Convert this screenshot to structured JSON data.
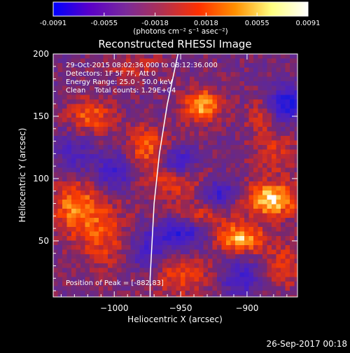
{
  "colorbar": {
    "ticks": [
      "-0.0091",
      "-0.0055",
      "-0.0018",
      "0.0018",
      "0.0055",
      "0.0091"
    ],
    "unit_label": "(photons cm⁻² s⁻¹ asec⁻²)",
    "range": [
      -0.0091,
      0.0091
    ],
    "colors": [
      "#0000ff",
      "#5a00c8",
      "#7a2a9a",
      "#b03050",
      "#ff3000",
      "#ff9000",
      "#ffff80",
      "#ffffff"
    ]
  },
  "chart_data": {
    "type": "heatmap",
    "title": "Reconstructed RHESSI Image",
    "xlabel": "Heliocentric X (arcsec)",
    "ylabel": "Heliocentric Y (arcsec)",
    "xlim": [
      -1046,
      -862
    ],
    "ylim": [
      5,
      200
    ],
    "x_ticks": [
      -1000,
      -950,
      -900
    ],
    "y_ticks": [
      50,
      100,
      150,
      200
    ],
    "annotations": [
      "29-Oct-2015 08:02:36.000 to 08:12:36.000",
      "Detectors: 1F 5F 7F, Att 0",
      "Energy Range: 25.0 - 50.0 keV",
      "Clean    Total counts: 1.29E+04"
    ],
    "peak_label": "Position of Peak = [-882,83]",
    "peak": [
      -882,
      83
    ],
    "limb_curve": [
      [
        -952,
        200
      ],
      [
        -956,
        180
      ],
      [
        -960,
        160
      ],
      [
        -963,
        140
      ],
      [
        -966,
        120
      ],
      [
        -968,
        100
      ],
      [
        -970,
        80
      ],
      [
        -971,
        60
      ],
      [
        -972,
        40
      ],
      [
        -973,
        20
      ],
      [
        -973,
        5
      ]
    ],
    "sources": [
      {
        "x": -882,
        "y": 83,
        "amp": 1.0,
        "sx": 14,
        "sy": 9
      },
      {
        "x": -905,
        "y": 52,
        "amp": 0.85,
        "sx": 13,
        "sy": 8
      },
      {
        "x": -934,
        "y": 158,
        "amp": 0.8,
        "sx": 10,
        "sy": 10
      },
      {
        "x": -1030,
        "y": 78,
        "amp": 0.65,
        "sx": 12,
        "sy": 14
      },
      {
        "x": -1018,
        "y": 150,
        "amp": 0.55,
        "sx": 12,
        "sy": 10
      },
      {
        "x": -1010,
        "y": 55,
        "amp": 0.45,
        "sx": 14,
        "sy": 20
      },
      {
        "x": -975,
        "y": 125,
        "amp": 0.55,
        "sx": 10,
        "sy": 12
      },
      {
        "x": -955,
        "y": 100,
        "amp": 0.5,
        "sx": 16,
        "sy": 10
      },
      {
        "x": -940,
        "y": 70,
        "amp": 0.5,
        "sx": 18,
        "sy": 8
      },
      {
        "x": -950,
        "y": 22,
        "amp": 0.45,
        "sx": 18,
        "sy": 12
      },
      {
        "x": -878,
        "y": 120,
        "amp": 0.35,
        "sx": 12,
        "sy": 12
      },
      {
        "x": -890,
        "y": 150,
        "amp": 0.3,
        "sx": 8,
        "sy": 12
      },
      {
        "x": -872,
        "y": 30,
        "amp": 0.4,
        "sx": 10,
        "sy": 12
      },
      {
        "x": -985,
        "y": 190,
        "amp": 0.3,
        "sx": 14,
        "sy": 8
      },
      {
        "x": -1000,
        "y": 105,
        "amp": -0.55,
        "sx": 10,
        "sy": 10
      },
      {
        "x": -952,
        "y": 112,
        "amp": -0.7,
        "sx": 10,
        "sy": 8
      },
      {
        "x": -950,
        "y": 58,
        "amp": -0.75,
        "sx": 14,
        "sy": 10
      },
      {
        "x": -920,
        "y": 88,
        "amp": -0.6,
        "sx": 10,
        "sy": 8
      },
      {
        "x": -870,
        "y": 160,
        "amp": -0.8,
        "sx": 10,
        "sy": 10
      },
      {
        "x": -1030,
        "y": 120,
        "amp": -0.4,
        "sx": 10,
        "sy": 12
      },
      {
        "x": -905,
        "y": 20,
        "amp": -0.5,
        "sx": 12,
        "sy": 10
      },
      {
        "x": -975,
        "y": 40,
        "amp": -0.45,
        "sx": 10,
        "sy": 12
      }
    ]
  },
  "footer": {
    "timestamp": "26-Sep-2017 00:18"
  }
}
